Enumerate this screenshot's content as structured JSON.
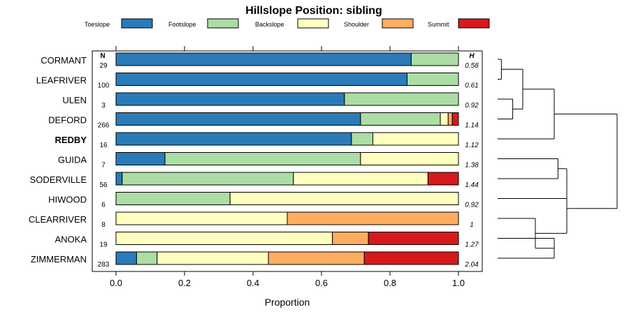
{
  "chart_data": {
    "type": "bar",
    "orientation": "horizontal",
    "stacked": true,
    "title": "Hillslope Position: sibling",
    "xlabel": "Proportion",
    "xlim": [
      0,
      1
    ],
    "x_ticks": [
      "0.0",
      "0.2",
      "0.4",
      "0.6",
      "0.8",
      "1.0"
    ],
    "n_header": "N",
    "h_header": "H",
    "highlight_row": "REDBY",
    "legend": [
      {
        "name": "Toeslope",
        "color": "#2b7bb9"
      },
      {
        "name": "Footslope",
        "color": "#abdda4"
      },
      {
        "name": "Backslope",
        "color": "#ffffbf"
      },
      {
        "name": "Shoulder",
        "color": "#fdae61"
      },
      {
        "name": "Summit",
        "color": "#d7191c"
      }
    ],
    "rows": [
      {
        "name": "CORMANT",
        "n": "29",
        "h": "0.58",
        "values": [
          0.862,
          0.138,
          0,
          0,
          0
        ]
      },
      {
        "name": "LEAFRIVER",
        "n": "100",
        "h": "0.61",
        "values": [
          0.85,
          0.15,
          0,
          0,
          0
        ]
      },
      {
        "name": "ULEN",
        "n": "3",
        "h": "0.92",
        "values": [
          0.667,
          0.333,
          0,
          0,
          0
        ]
      },
      {
        "name": "DEFORD",
        "n": "266",
        "h": "1.14",
        "values": [
          0.714,
          0.233,
          0.023,
          0.012,
          0.018
        ]
      },
      {
        "name": "REDBY",
        "n": "16",
        "h": "1.12",
        "values": [
          0.6875,
          0.0625,
          0.25,
          0,
          0
        ]
      },
      {
        "name": "GUIDA",
        "n": "7",
        "h": "1.38",
        "values": [
          0.143,
          0.571,
          0.286,
          0,
          0
        ]
      },
      {
        "name": "SODERVILLE",
        "n": "56",
        "h": "1.44",
        "values": [
          0.018,
          0.5,
          0.393,
          0,
          0.089
        ]
      },
      {
        "name": "HIWOOD",
        "n": "6",
        "h": "0.92",
        "values": [
          0,
          0.333,
          0.667,
          0,
          0
        ]
      },
      {
        "name": "CLEARRIVER",
        "n": "8",
        "h": "1",
        "values": [
          0,
          0,
          0.5,
          0.5,
          0
        ]
      },
      {
        "name": "ANOKA",
        "n": "19",
        "h": "1.27",
        "values": [
          0,
          0,
          0.632,
          0.105,
          0.263
        ]
      },
      {
        "name": "ZIMMERMAN",
        "n": "283",
        "h": "2.04",
        "values": [
          0.06,
          0.06,
          0.325,
          0.28,
          0.275
        ]
      }
    ],
    "dendrogram": {
      "tree": [
        [
          [
            [
              "CORMANT",
              "LEAFRIVER"
            ],
            [
              "ULEN",
              "DEFORD"
            ]
          ],
          "REDBY"
        ],
        [
          [
            [
              "GUIDA",
              "SODERVILLE"
            ],
            "HIWOOD"
          ],
          [
            "CLEARRIVER",
            [
              "ANOKA",
              "ZIMMERMAN"
            ]
          ]
        ]
      ],
      "heights": [
        0.03,
        0.12,
        0.2,
        0.45,
        0.48,
        0.55,
        0.45,
        0.3,
        0.55,
        0.95
      ]
    }
  }
}
